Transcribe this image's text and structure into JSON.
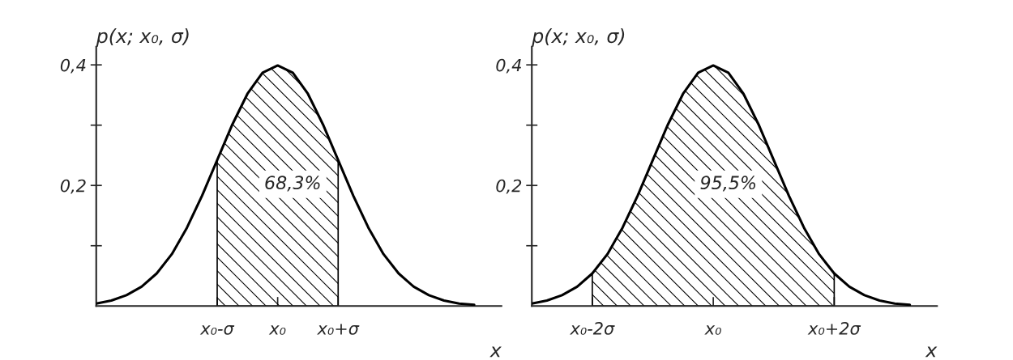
{
  "chart_data": [
    {
      "type": "line",
      "ylabel": "p(x; x₀, σ)",
      "xlabel": "x",
      "ylim": [
        0,
        0.43
      ],
      "categories": [
        null,
        null,
        null,
        null,
        null,
        null,
        null,
        null,
        "x₀-σ",
        null,
        null,
        null,
        "x₀",
        null,
        null,
        null,
        "x₀+σ",
        null,
        null,
        null,
        null,
        null,
        null,
        null,
        null,
        null
      ],
      "yticks": [
        {
          "value": 0.1,
          "label": null
        },
        {
          "value": 0.2,
          "label": "0,2"
        },
        {
          "value": 0.3,
          "label": null
        },
        {
          "value": 0.4,
          "label": "0,4"
        }
      ],
      "grid": false,
      "legend": false,
      "marker": "none",
      "line_style": "solid",
      "annotations": [
        "68,3%"
      ],
      "series": [
        {
          "color": "#000000",
          "values": [
            0.004,
            0.009,
            0.018,
            0.032,
            0.054,
            0.086,
            0.13,
            0.183,
            0.242,
            0.301,
            0.352,
            0.387,
            0.399,
            0.387,
            0.352,
            0.301,
            0.242,
            0.183,
            0.13,
            0.086,
            0.054,
            0.032,
            0.018,
            0.009,
            0.004,
            0.002
          ]
        },
        {
          "type": "area",
          "color": "#000000",
          "values": [
            null,
            null,
            null,
            null,
            null,
            null,
            null,
            null,
            0.242,
            0.301,
            0.352,
            0.387,
            0.399,
            0.387,
            0.352,
            0.301,
            0.242,
            null,
            null,
            null,
            null,
            null,
            null,
            null,
            null,
            null
          ]
        }
      ]
    },
    {
      "type": "line",
      "ylabel": "p(x; x₀, σ)",
      "xlabel": "x",
      "ylim": [
        0,
        0.43
      ],
      "categories": [
        null,
        null,
        null,
        null,
        "x₀-2σ",
        null,
        null,
        null,
        null,
        null,
        null,
        null,
        "x₀",
        null,
        null,
        null,
        null,
        null,
        null,
        null,
        "x₀+2σ",
        null,
        null,
        null,
        null,
        null
      ],
      "yticks": [
        {
          "value": 0.1,
          "label": null
        },
        {
          "value": 0.2,
          "label": "0,2"
        },
        {
          "value": 0.3,
          "label": null
        },
        {
          "value": 0.4,
          "label": "0,4"
        }
      ],
      "grid": false,
      "legend": false,
      "marker": "none",
      "line_style": "solid",
      "annotations": [
        "95,5%"
      ],
      "series": [
        {
          "color": "#000000",
          "values": [
            0.004,
            0.009,
            0.018,
            0.032,
            0.054,
            0.086,
            0.13,
            0.183,
            0.242,
            0.301,
            0.352,
            0.387,
            0.399,
            0.387,
            0.352,
            0.301,
            0.242,
            0.183,
            0.13,
            0.086,
            0.054,
            0.032,
            0.018,
            0.009,
            0.004,
            0.002
          ]
        },
        {
          "type": "area",
          "color": "#000000",
          "values": [
            null,
            null,
            null,
            null,
            0.054,
            0.086,
            0.13,
            0.183,
            0.242,
            0.301,
            0.352,
            0.387,
            0.399,
            0.387,
            0.352,
            0.301,
            0.242,
            0.183,
            0.13,
            0.086,
            0.054,
            null,
            null,
            null,
            null,
            null
          ]
        }
      ]
    }
  ]
}
